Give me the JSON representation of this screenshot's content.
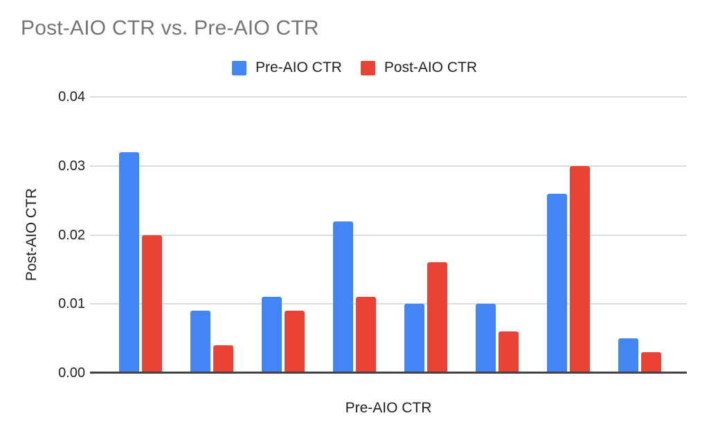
{
  "chart_data": {
    "type": "bar",
    "title": "Post-AIO CTR vs. Pre-AIO CTR",
    "xlabel": "Pre-AIO CTR",
    "ylabel": "Post-AIO CTR",
    "ylim": [
      0,
      0.04
    ],
    "ytick_labels": [
      "0.00",
      "0.01",
      "0.02",
      "0.03",
      "0.04"
    ],
    "grid": true,
    "legend_position": "top-center",
    "series": [
      {
        "name": "Pre-AIO CTR",
        "color": "#4285F4",
        "values": [
          0.032,
          0.009,
          0.011,
          0.022,
          0.01,
          0.01,
          0.026,
          0.005
        ]
      },
      {
        "name": "Post-AIO CTR",
        "color": "#EA4335",
        "values": [
          0.02,
          0.004,
          0.009,
          0.011,
          0.016,
          0.006,
          0.03,
          0.003
        ]
      }
    ],
    "colors": {
      "background": "#ffffff",
      "title_text": "#757575",
      "axis_text": "#1f1f1f",
      "gridline": "#dcdcdc",
      "baseline": "#424242"
    }
  }
}
